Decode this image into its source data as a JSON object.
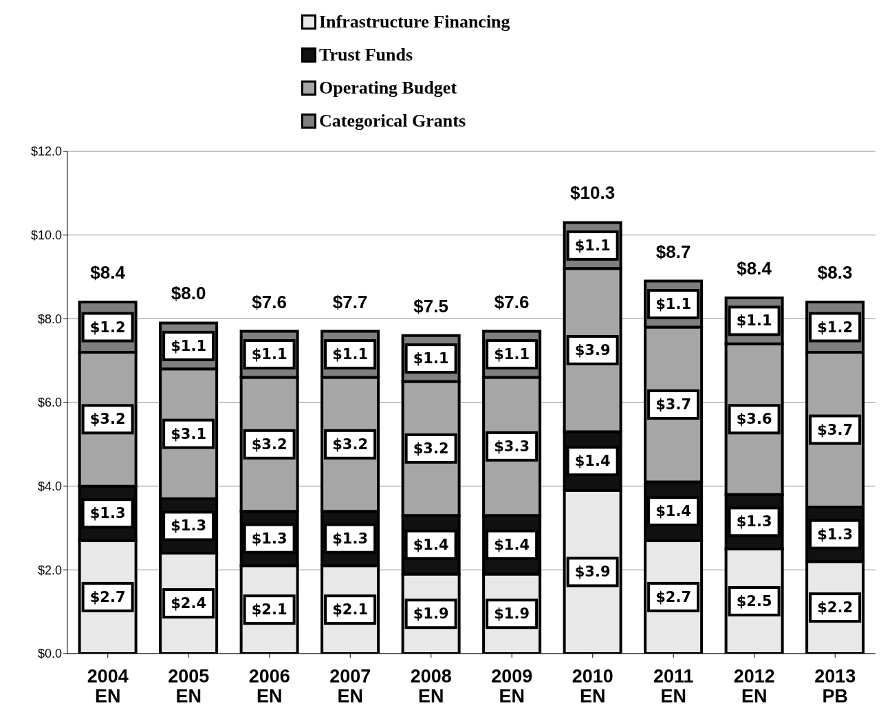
{
  "chart_data": {
    "type": "bar",
    "stacked": true,
    "categories": [
      "2004\nEN",
      "2005\nEN",
      "2006\nEN",
      "2007\nEN",
      "2008\nEN",
      "2009\nEN",
      "2010\nEN",
      "2011\nEN",
      "2012\nEN",
      "2013\nPB"
    ],
    "series": [
      {
        "name": "Infrastructure Financing",
        "color": "#e8e8e8",
        "values": [
          2.7,
          2.4,
          2.1,
          2.1,
          1.9,
          1.9,
          3.9,
          2.7,
          2.5,
          2.2
        ],
        "value_labels": [
          "$2.7",
          "$2.4",
          "$2.1",
          "$2.1",
          "$1.9",
          "$1.9",
          "$3.9",
          "$2.7",
          "$2.5",
          "$2.2"
        ]
      },
      {
        "name": "Trust Funds",
        "color": "#111111",
        "values": [
          1.3,
          1.3,
          1.3,
          1.3,
          1.4,
          1.4,
          1.4,
          1.4,
          1.3,
          1.3
        ],
        "value_labels": [
          "$1.3",
          "$1.3",
          "$1.3",
          "$1.3",
          "$1.4",
          "$1.4",
          "$1.4",
          "$1.4",
          "$1.3",
          "$1.3"
        ]
      },
      {
        "name": "Operating Budget",
        "color": "#a6a6a6",
        "values": [
          3.2,
          3.1,
          3.2,
          3.2,
          3.2,
          3.3,
          3.9,
          3.7,
          3.6,
          3.7
        ],
        "value_labels": [
          "$3.2",
          "$3.1",
          "$3.2",
          "$3.2",
          "$3.2",
          "$3.3",
          "$3.9",
          "$3.7",
          "$3.6",
          "$3.7"
        ]
      },
      {
        "name": "Categorical Grants",
        "color": "#7f7f7f",
        "values": [
          1.2,
          1.1,
          1.1,
          1.1,
          1.1,
          1.1,
          1.1,
          1.1,
          1.1,
          1.2
        ],
        "value_labels": [
          "$1.2",
          "$1.1",
          "$1.1",
          "$1.1",
          "$1.1",
          "$1.1",
          "$1.1",
          "$1.1",
          "$1.1",
          "$1.2"
        ]
      }
    ],
    "totals": [
      "$8.4",
      "$8.0",
      "$7.6",
      "$7.7",
      "$7.5",
      "$7.6",
      "$10.3",
      "$8.7",
      "$8.4",
      "$8.3"
    ],
    "ylim": [
      0,
      12
    ],
    "yticks": [
      {
        "value": 0,
        "label": "$0.0"
      },
      {
        "value": 2,
        "label": "$2.0"
      },
      {
        "value": 4,
        "label": "$4.0"
      },
      {
        "value": 6,
        "label": "$6.0"
      },
      {
        "value": 8,
        "label": "$8.0"
      },
      {
        "value": 10,
        "label": "$10.0"
      },
      {
        "value": 12,
        "label": "$12.0"
      }
    ],
    "grid": "y",
    "legend": "top"
  }
}
